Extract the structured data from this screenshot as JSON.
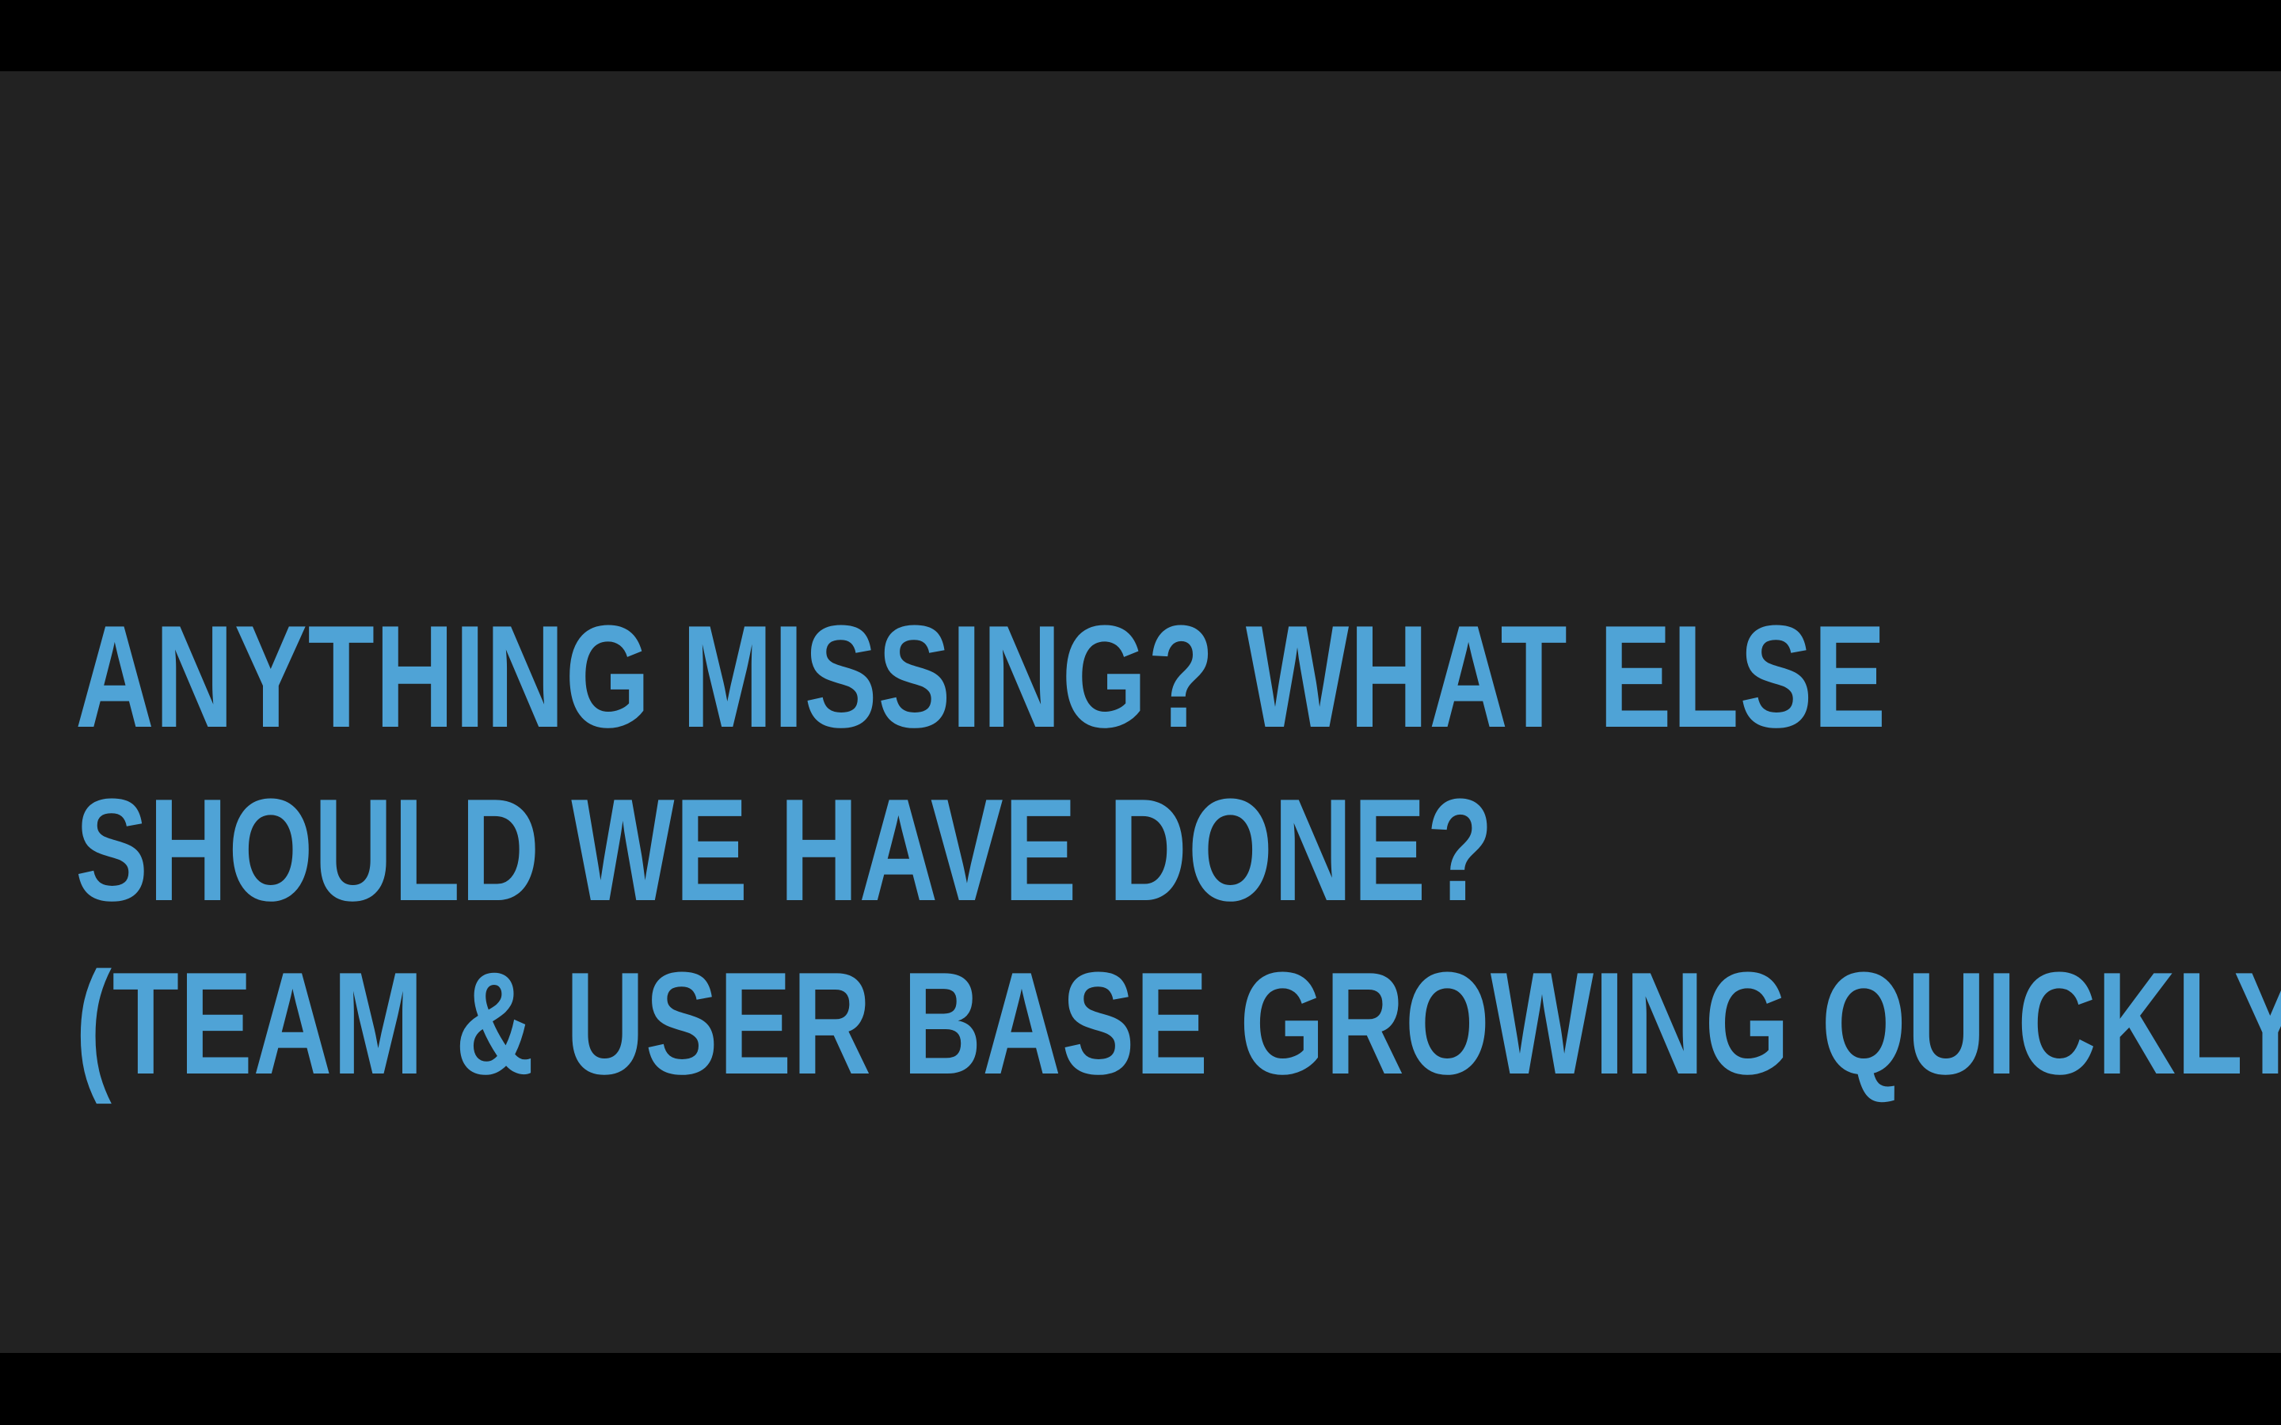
{
  "slide": {
    "accent_color": "#4fa3d6",
    "background_color": "#222222",
    "letterbox_color": "#000000",
    "headline_lines": [
      "ANYTHING MISSING? WHAT ELSE",
      "SHOULD WE HAVE DONE?",
      "(TEAM & USER BASE GROWING QUICKLY)"
    ]
  }
}
